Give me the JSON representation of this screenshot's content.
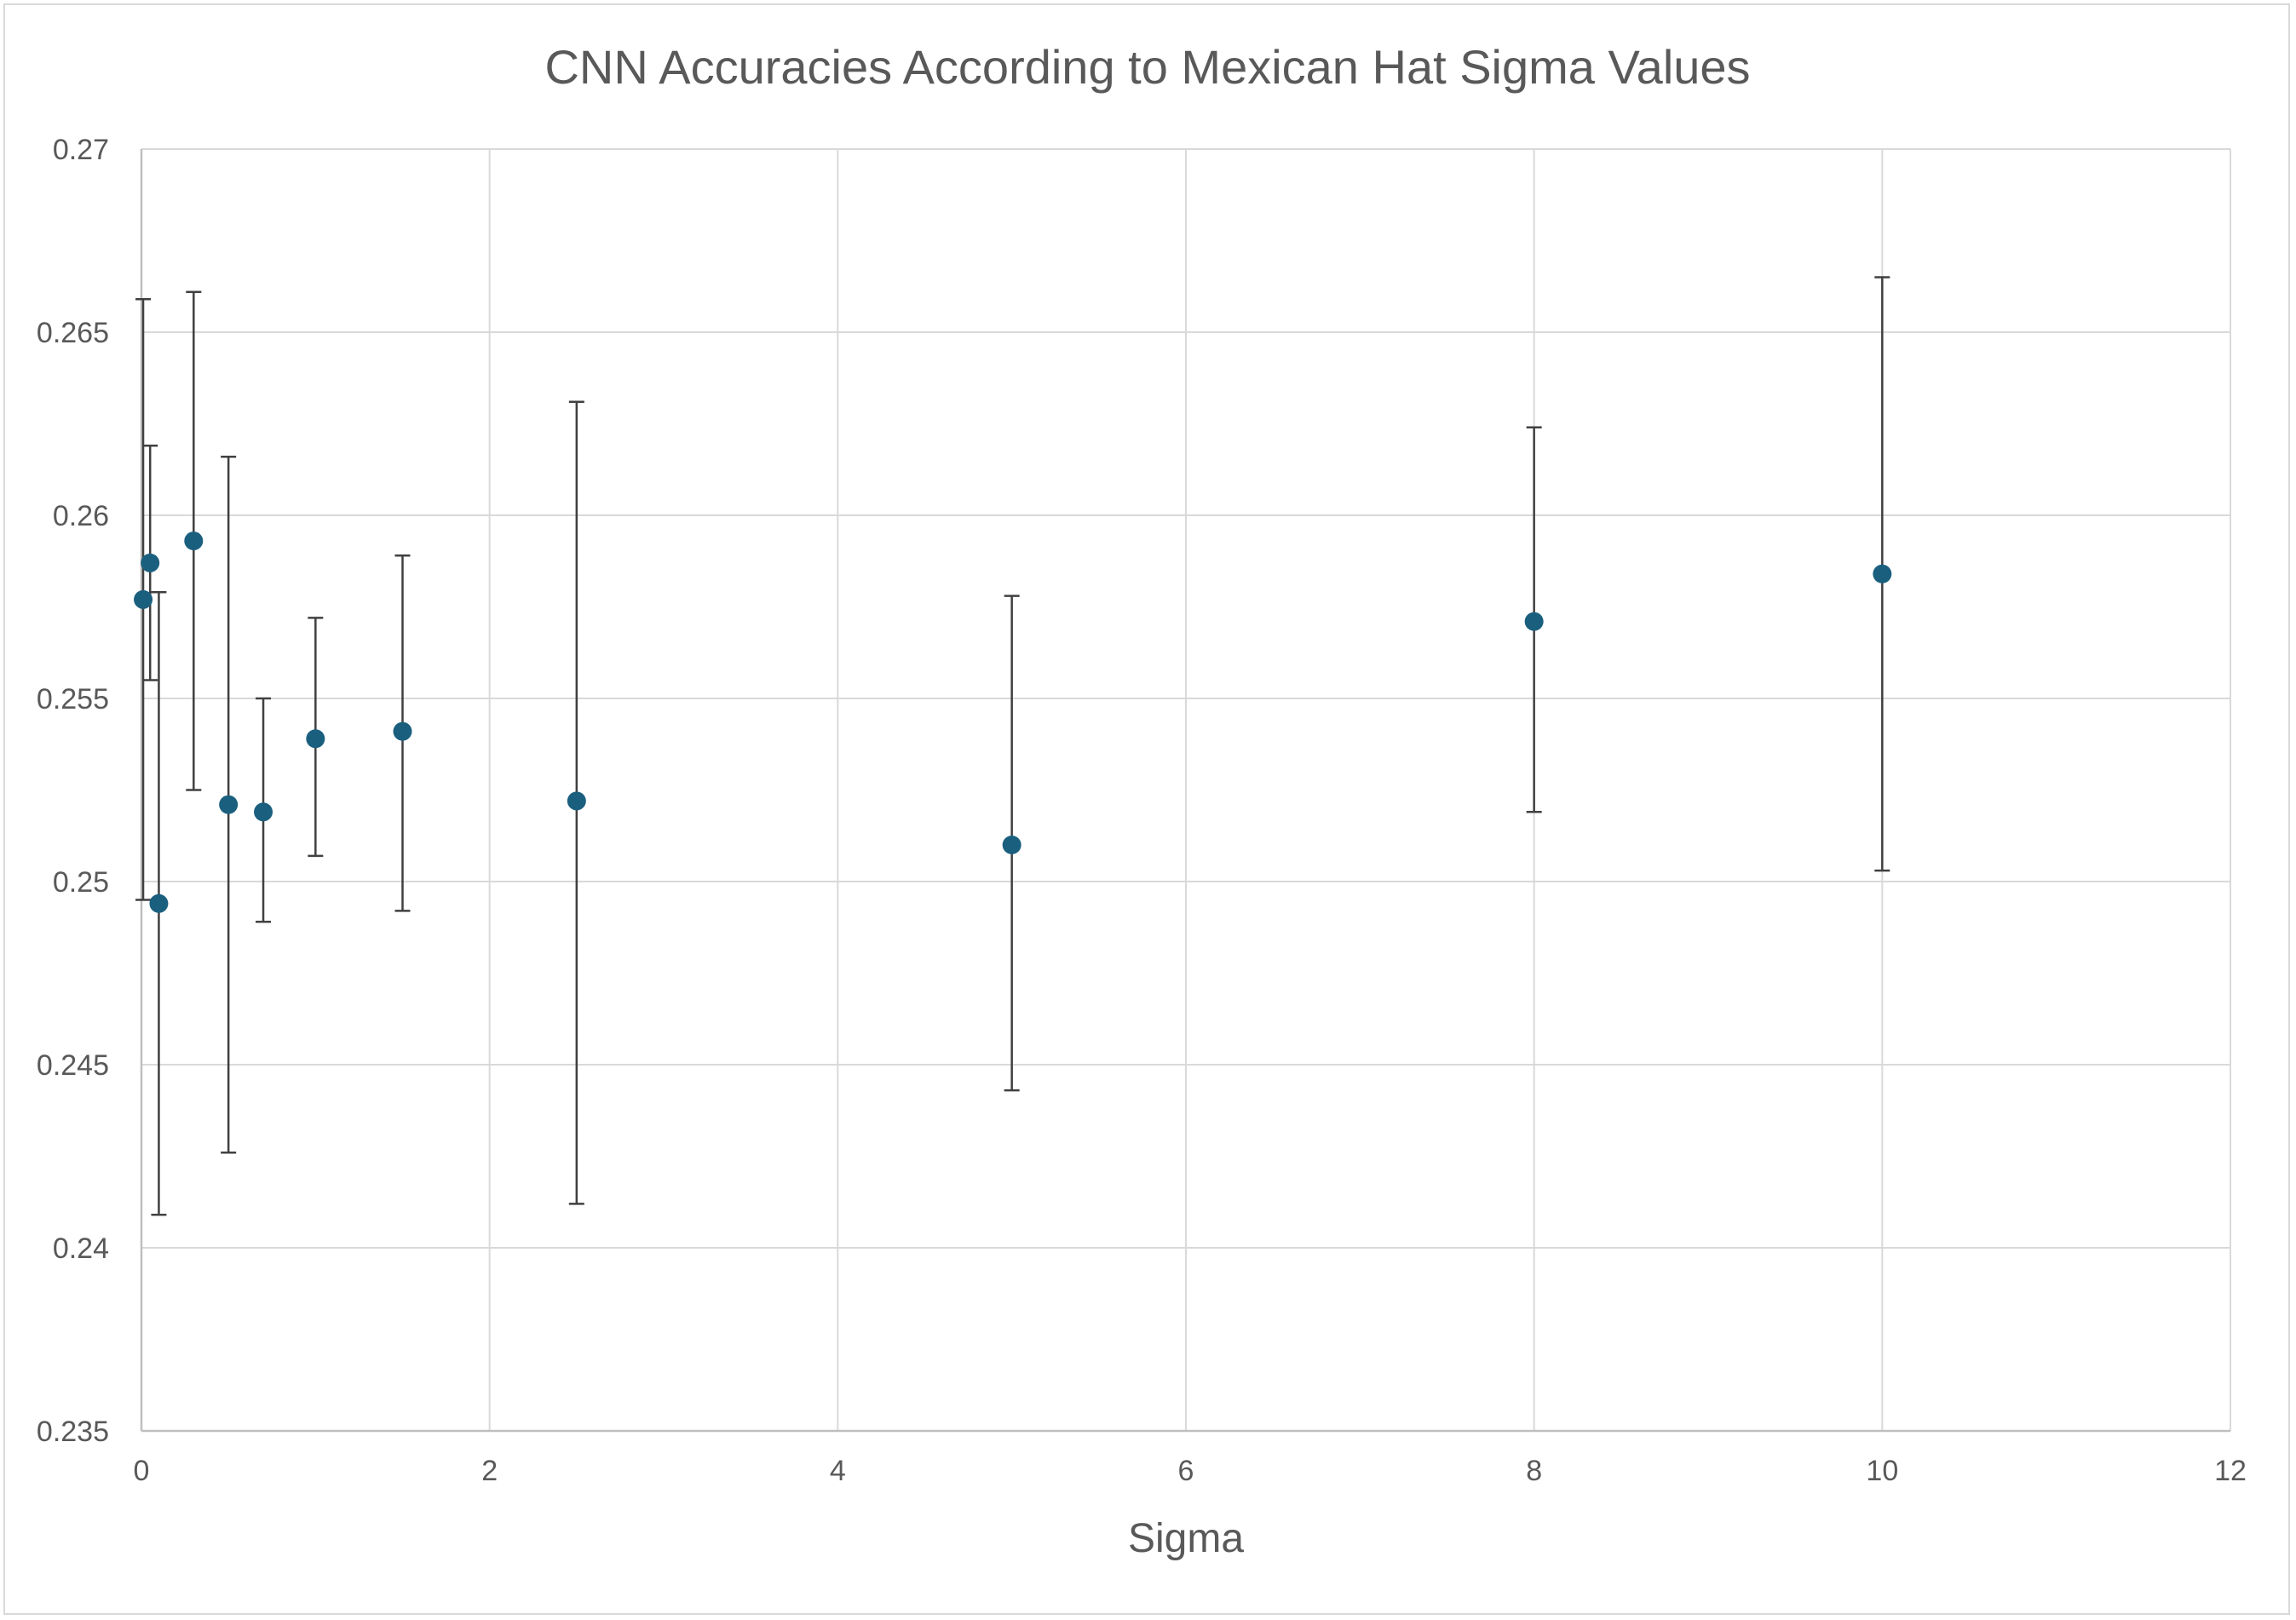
{
  "chart_data": {
    "type": "scatter",
    "title": "CNN Accuracies According to Mexican Hat Sigma Values",
    "xlabel": "Sigma",
    "ylabel": "",
    "xlim": [
      0,
      12
    ],
    "ylim": [
      0.235,
      0.27
    ],
    "x_ticks": [
      0,
      2,
      4,
      6,
      8,
      10,
      12
    ],
    "x_tick_labels": [
      "0",
      "2",
      "4",
      "6",
      "8",
      "10",
      "12"
    ],
    "y_ticks": [
      0.235,
      0.24,
      0.245,
      0.25,
      0.255,
      0.26,
      0.265,
      0.27
    ],
    "y_tick_labels": [
      "0.235",
      "0.24",
      "0.245",
      "0.25",
      "0.255",
      "0.26",
      "0.265",
      "0.27"
    ],
    "grid": true,
    "legend": "none",
    "marker_color": "#1b5f7f",
    "error_bar_color": "#404040",
    "grid_color": "#d9d9d9",
    "points": [
      {
        "x": 0.01,
        "y": 0.2577,
        "y_low": 0.2495,
        "y_high": 0.2659
      },
      {
        "x": 0.05,
        "y": 0.2587,
        "y_low": 0.2555,
        "y_high": 0.2619
      },
      {
        "x": 0.1,
        "y": 0.2494,
        "y_low": 0.2409,
        "y_high": 0.2579
      },
      {
        "x": 0.3,
        "y": 0.2593,
        "y_low": 0.2525,
        "y_high": 0.2661
      },
      {
        "x": 0.5,
        "y": 0.2521,
        "y_low": 0.2426,
        "y_high": 0.2616
      },
      {
        "x": 0.7,
        "y": 0.2519,
        "y_low": 0.2489,
        "y_high": 0.255
      },
      {
        "x": 1.0,
        "y": 0.2539,
        "y_low": 0.2507,
        "y_high": 0.2572
      },
      {
        "x": 1.5,
        "y": 0.2541,
        "y_low": 0.2492,
        "y_high": 0.2589
      },
      {
        "x": 2.5,
        "y": 0.2522,
        "y_low": 0.2412,
        "y_high": 0.2631
      },
      {
        "x": 5.0,
        "y": 0.251,
        "y_low": 0.2443,
        "y_high": 0.2578
      },
      {
        "x": 8.0,
        "y": 0.2571,
        "y_low": 0.2519,
        "y_high": 0.2624
      },
      {
        "x": 10.0,
        "y": 0.2584,
        "y_low": 0.2503,
        "y_high": 0.2665
      }
    ]
  }
}
